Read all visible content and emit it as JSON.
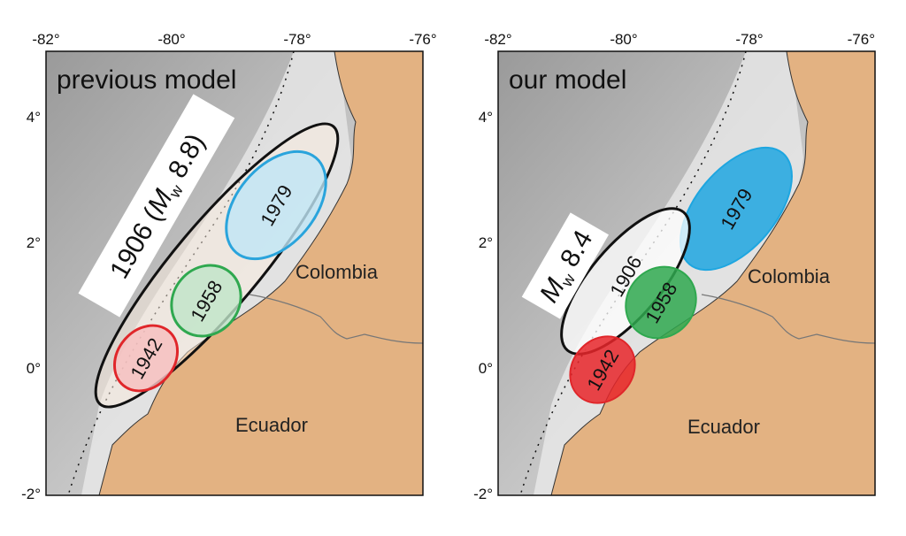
{
  "panels": [
    {
      "title": "previous model",
      "x_ticks": [
        "-82°",
        "-80°",
        "-78°",
        "-76°"
      ],
      "y_ticks": [
        "4°",
        "2°",
        "0°",
        "-2°"
      ],
      "countries": [
        "Colombia",
        "Ecuador"
      ],
      "main_rupture": {
        "prefix": "1906 (",
        "symbol": "M",
        "subscript": "w",
        "suffix": " 8.8)"
      },
      "ruptures": [
        "1979",
        "1958",
        "1942"
      ]
    },
    {
      "title": "our model",
      "x_ticks": [
        "-82°",
        "-80°",
        "-78°",
        "-76°"
      ],
      "y_ticks": [
        "4°",
        "2°",
        "0°",
        "-2°"
      ],
      "countries": [
        "Colombia",
        "Ecuador"
      ],
      "main_rupture": {
        "prefix": "",
        "symbol": "M",
        "subscript": "w",
        "suffix": " 8.4"
      },
      "year_1906": "1906",
      "ruptures": [
        "1979",
        "1958",
        "1942"
      ]
    }
  ]
}
